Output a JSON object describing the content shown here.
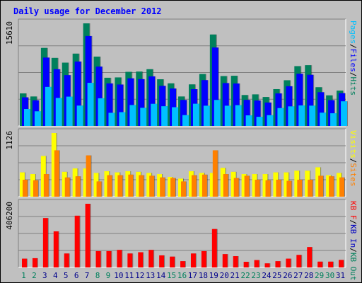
{
  "chart_data": {
    "type": "bar",
    "title": "Daily usage for December 2012",
    "categories": [
      "1",
      "2",
      "3",
      "4",
      "5",
      "6",
      "7",
      "8",
      "9",
      "10",
      "11",
      "12",
      "13",
      "14",
      "15",
      "16",
      "17",
      "18",
      "19",
      "20",
      "21",
      "22",
      "23",
      "24",
      "25",
      "26",
      "27",
      "28",
      "29",
      "30",
      "31"
    ],
    "weekend_days": [
      "1",
      "2",
      "8",
      "9",
      "15",
      "16",
      "22",
      "23",
      "29",
      "30"
    ],
    "panels": [
      {
        "id": "hits-files-pages",
        "ymax_label": "15610",
        "ymax": 15610,
        "series": [
          {
            "name": "Hits",
            "color": "#00805c",
            "values": [
              4950,
              4480,
              11870,
              10350,
              9630,
              11000,
              15610,
              10550,
              7330,
              7380,
              8230,
              8270,
              8630,
              7100,
              6480,
              4480,
              6320,
              7900,
              13910,
              7590,
              7630,
              4700,
              4800,
              4400,
              5600,
              6950,
              9100,
              9240,
              5890,
              4650,
              5380
            ]
          },
          {
            "name": "Files",
            "color": "#0000ff",
            "values": [
              4350,
              3900,
              10400,
              8630,
              7730,
              9800,
              13680,
              9030,
              6470,
              6300,
              7240,
              7120,
              7540,
              6100,
              5690,
              3950,
              5590,
              6970,
              11930,
              6520,
              6460,
              3960,
              3870,
              3560,
              4950,
              6040,
              7940,
              7780,
              5130,
              3920,
              4990
            ]
          },
          {
            "name": "Pages",
            "color": "#00c0ff",
            "values": [
              2580,
              2230,
              5940,
              4260,
              4460,
              3100,
              6560,
              4210,
              2000,
              2100,
              3180,
              2760,
              3370,
              3000,
              2850,
              1650,
              3380,
              3080,
              3960,
              3080,
              3160,
              1610,
              1390,
              1640,
              2720,
              2980,
              3120,
              3090,
              2020,
              1930,
              3750
            ]
          }
        ]
      },
      {
        "id": "visits-sites",
        "ymax_label": "1126",
        "ymax": 1126,
        "series": [
          {
            "name": "Visits",
            "color": "#ffff00",
            "values": [
              430,
              400,
              720,
              1126,
              440,
              500,
              500,
              420,
              450,
              430,
              450,
              440,
              420,
              400,
              350,
              320,
              450,
              420,
              420,
              510,
              440,
              400,
              400,
              400,
              430,
              430,
              460,
              460,
              520,
              380,
              420
            ]
          },
          {
            "name": "Sites",
            "color": "#ff8000",
            "values": [
              300,
              290,
              400,
              820,
              340,
              360,
              730,
              270,
              380,
              380,
              390,
              380,
              370,
              340,
              330,
              270,
              380,
              390,
              820,
              400,
              330,
              370,
              300,
              290,
              300,
              280,
              300,
              300,
              370,
              360,
              340
            ]
          }
        ]
      },
      {
        "id": "kb-in-out",
        "ymax_label": "406200",
        "ymax": 406200,
        "series": [
          {
            "name": "KB F",
            "color": "#ff0000",
            "values": [
              56000,
              59000,
              315000,
              230000,
              89000,
              330000,
              406200,
              104000,
              104000,
              112000,
              89000,
              97000,
              112000,
              77000,
              69000,
              40000,
              89000,
              104000,
              245000,
              85000,
              72000,
              36000,
              47000,
              26000,
              40000,
              56000,
              80000,
              130000,
              37000,
              37000,
              48000
            ]
          },
          {
            "name": "KB In",
            "color": "#0000c0",
            "values": []
          },
          {
            "name": "KB Out",
            "color": "#00805c",
            "values": []
          }
        ]
      }
    ],
    "grid": true
  },
  "colors": {
    "background": "#C0C0C0",
    "plot_bg": "#C0C0C0",
    "title": "#0000ff",
    "weekday_label": "#00008b",
    "weekend_label": "#00805c"
  },
  "legend": {
    "top": [
      {
        "text": "Pages",
        "color": "#00c0ff"
      },
      {
        "text": "/",
        "color": "#000000"
      },
      {
        "text": "Files",
        "color": "#0000ff"
      },
      {
        "text": "/",
        "color": "#000000"
      },
      {
        "text": "Hits",
        "color": "#00805c"
      }
    ],
    "middle": [
      {
        "text": "Visits",
        "color": "#ffff00"
      },
      {
        "text": "/",
        "color": "#000000"
      },
      {
        "text": "Sites",
        "color": "#ff8000"
      }
    ],
    "bottom": [
      {
        "text": "KB F",
        "color": "#ff0000"
      },
      {
        "text": "/",
        "color": "#000000"
      },
      {
        "text": "KB In",
        "color": "#0000c0"
      },
      {
        "text": "/",
        "color": "#000000"
      },
      {
        "text": "KB Out",
        "color": "#00805c"
      }
    ]
  }
}
